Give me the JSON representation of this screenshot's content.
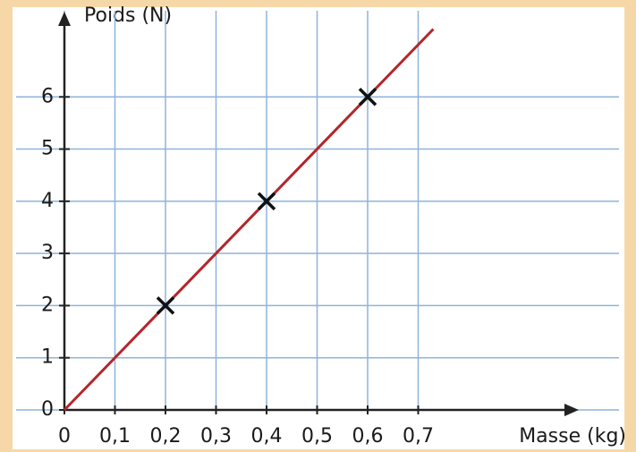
{
  "chart_data": {
    "type": "scatter",
    "ylabel": "Poids (N)",
    "xlabel": "Masse (kg)",
    "points": {
      "x": [
        0.2,
        0.4,
        0.6
      ],
      "y": [
        2,
        4,
        6
      ],
      "color": "#111111"
    },
    "fit_line": {
      "x": [
        0,
        0.73
      ],
      "y": [
        0,
        7.3
      ],
      "color": "#b3262b"
    },
    "xlim": [
      0,
      1.0
    ],
    "ylim": [
      0,
      7.6
    ],
    "xticks": [
      0,
      {
        "value": 0.1,
        "label": "0,1"
      },
      {
        "value": 0.2,
        "label": "0,2"
      },
      {
        "value": 0.3,
        "label": "0,3"
      },
      {
        "value": 0.4,
        "label": "0,4"
      },
      {
        "value": 0.5,
        "label": "0,5"
      },
      {
        "value": 0.6,
        "label": "0,6"
      },
      {
        "value": 0.7,
        "label": "0,7"
      }
    ],
    "yticks": [
      0,
      1,
      2,
      3,
      4,
      5,
      6
    ],
    "grid": true,
    "grid_color": "#8fb3dc"
  }
}
